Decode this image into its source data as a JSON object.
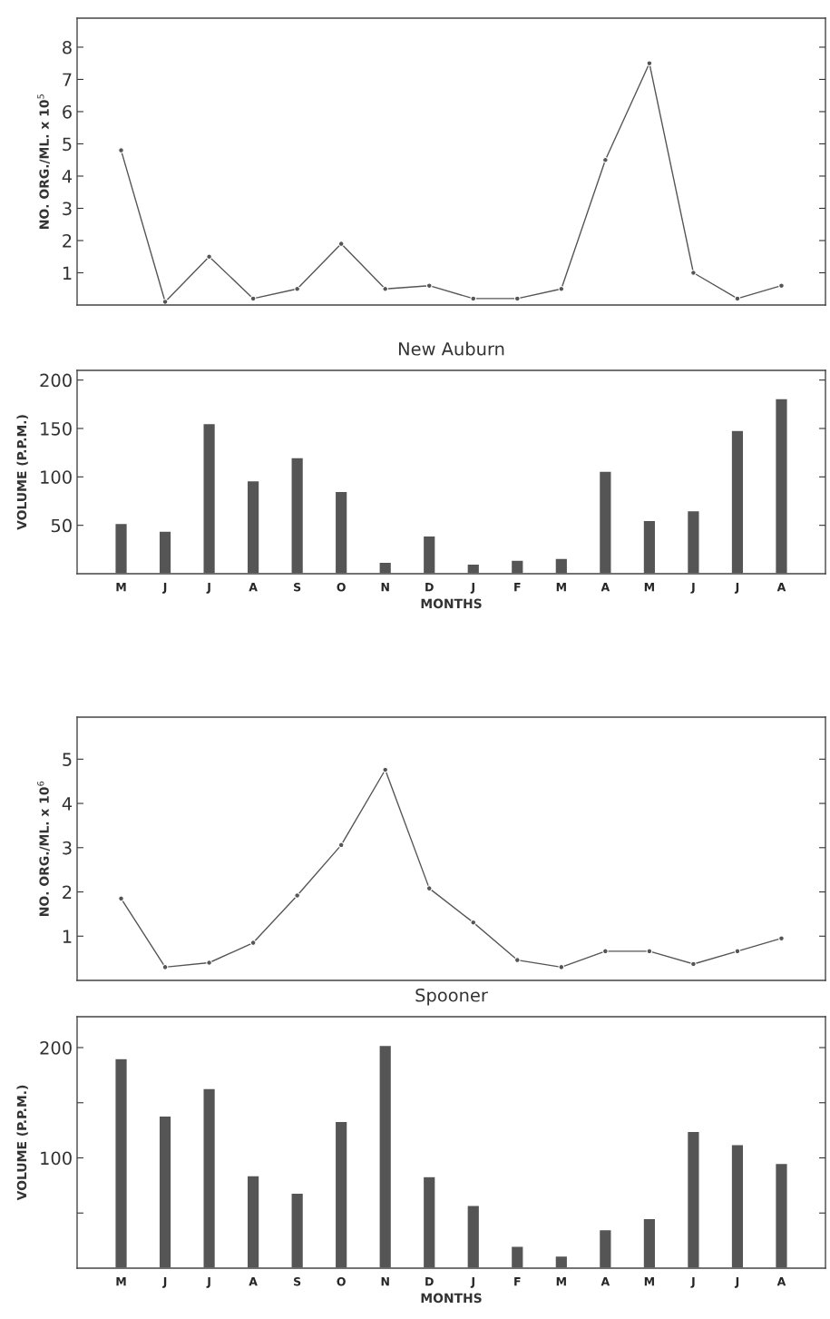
{
  "chart_data": [
    {
      "type": "line",
      "categories": [
        null,
        null,
        null,
        null,
        null,
        null,
        null,
        null,
        null,
        null,
        null,
        null,
        null,
        null,
        null,
        null
      ],
      "ylabel": "NO. ORG./ML. x 10$^{5}$",
      "ylim": [
        0,
        8.9
      ],
      "yticks": [
        1,
        2,
        3,
        4,
        5,
        6,
        7,
        8
      ],
      "tick_labels": "y",
      "marker": "circle",
      "line_style": "solid",
      "grid": false,
      "series": [
        {
          "color": "#555555",
          "values": [
            4.8,
            0.1,
            1.5,
            0.2,
            0.5,
            1.9,
            0.5,
            0.6,
            0.2,
            0.2,
            0.5,
            4.5,
            7.5,
            1.0,
            0.2,
            0.6
          ]
        }
      ]
    },
    {
      "type": "bar",
      "title": "New Auburn",
      "categories": [
        "M",
        "J",
        "J",
        "A",
        "S",
        "O",
        "N",
        "D",
        "J",
        "F",
        "M",
        "A",
        "M",
        "J",
        "J",
        "A"
      ],
      "xlabel": "MONTHS",
      "ylabel": "VOLUME (P.P.M.)",
      "ylim": [
        0,
        210
      ],
      "yticks": [
        50,
        100,
        150,
        200
      ],
      "grid": false,
      "series": [
        {
          "color": "#555555",
          "values": [
            52,
            44,
            155,
            96,
            120,
            85,
            12,
            39,
            10,
            14,
            16,
            106,
            55,
            65,
            148,
            181
          ]
        }
      ]
    },
    {
      "type": "line",
      "categories": [
        null,
        null,
        null,
        null,
        null,
        null,
        null,
        null,
        null,
        null,
        null,
        null,
        null,
        null,
        null,
        null
      ],
      "ylabel": "NO. ORG./ML. x 10$^{6}$",
      "ylim": [
        0,
        5.95
      ],
      "yticks": [
        1,
        2,
        3,
        4,
        5
      ],
      "tick_labels": "y",
      "marker": "circle",
      "line_style": "solid",
      "grid": false,
      "series": [
        {
          "color": "#555555",
          "values": [
            1.85,
            0.3,
            0.4,
            0.85,
            1.92,
            3.06,
            4.76,
            2.08,
            1.31,
            0.46,
            0.3,
            0.66,
            0.66,
            0.37,
            0.66,
            0.95
          ]
        }
      ]
    },
    {
      "type": "bar",
      "title": "Spooner",
      "categories": [
        "M",
        "J",
        "J",
        "A",
        "S",
        "O",
        "N",
        "D",
        "J",
        "F",
        "M",
        "A",
        "M",
        "J",
        "J",
        "A"
      ],
      "xlabel": "MONTHS",
      "ylabel": "VOLUME (P.P.M.)",
      "ylim": [
        0,
        228
      ],
      "yticks": [
        {
          "value": 50,
          "label": null
        },
        100,
        {
          "value": 150,
          "label": null
        },
        200
      ],
      "grid": false,
      "series": [
        {
          "color": "#555555",
          "values": [
            190,
            138,
            163,
            84,
            68,
            133,
            202,
            83,
            57,
            20,
            11,
            35,
            45,
            124,
            112,
            95
          ]
        }
      ]
    }
  ]
}
